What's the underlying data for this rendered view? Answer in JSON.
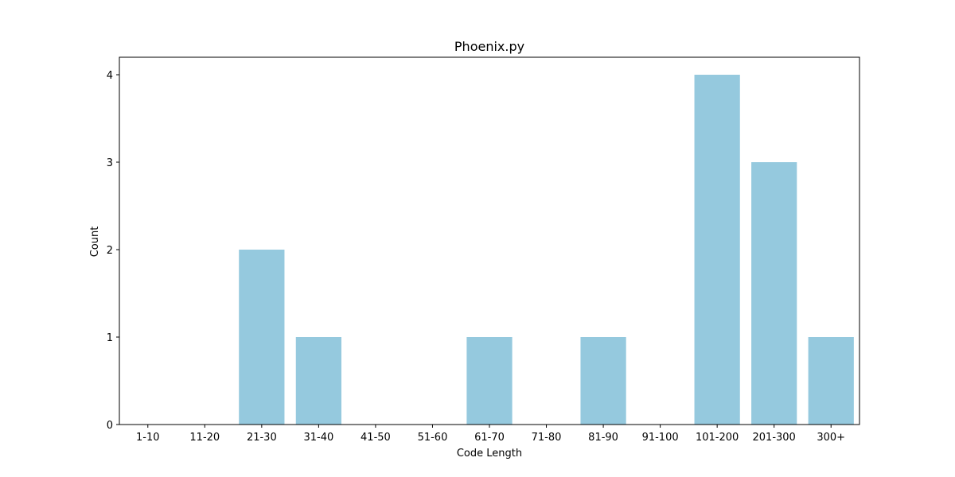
{
  "chart_data": {
    "type": "bar",
    "title": "Phoenix.py",
    "xlabel": "Code Length",
    "ylabel": "Count",
    "categories": [
      "1-10",
      "11-20",
      "21-30",
      "31-40",
      "41-50",
      "51-60",
      "61-70",
      "71-80",
      "81-90",
      "91-100",
      "101-200",
      "201-300",
      "300+"
    ],
    "values": [
      0,
      0,
      2,
      1,
      0,
      0,
      1,
      0,
      1,
      0,
      4,
      3,
      1
    ],
    "yticks": [
      0,
      1,
      2,
      3,
      4
    ],
    "ylim": [
      0,
      4.2
    ],
    "grid": false,
    "bar_color": "#95c9de"
  }
}
